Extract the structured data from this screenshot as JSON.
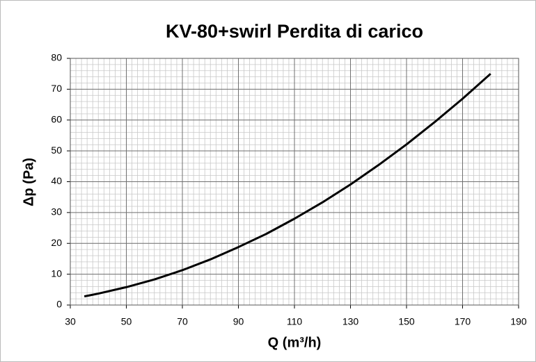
{
  "chart_data": {
    "type": "line",
    "title": "KV-80+swirl Perdita di carico",
    "x_label": "Q (m³/h)",
    "y_label": "Δp (Pa)",
    "x": [
      35,
      40,
      50,
      60,
      70,
      80,
      90,
      100,
      110,
      120,
      130,
      140,
      150,
      160,
      170,
      180
    ],
    "values": [
      2.8,
      3.7,
      5.8,
      8.3,
      11.3,
      14.8,
      18.8,
      23.1,
      28.0,
      33.3,
      39.1,
      45.4,
      52.1,
      59.3,
      66.9,
      75.0
    ],
    "color": "#000000",
    "xlim": [
      30,
      190
    ],
    "xticks": [
      30,
      50,
      70,
      90,
      110,
      130,
      150,
      170,
      190
    ],
    "ylim": [
      0,
      80
    ],
    "yticks": [
      0,
      10,
      20,
      30,
      40,
      50,
      60,
      70,
      80
    ],
    "grid": true,
    "minor_xstep": 2,
    "minor_ystep": 2
  }
}
